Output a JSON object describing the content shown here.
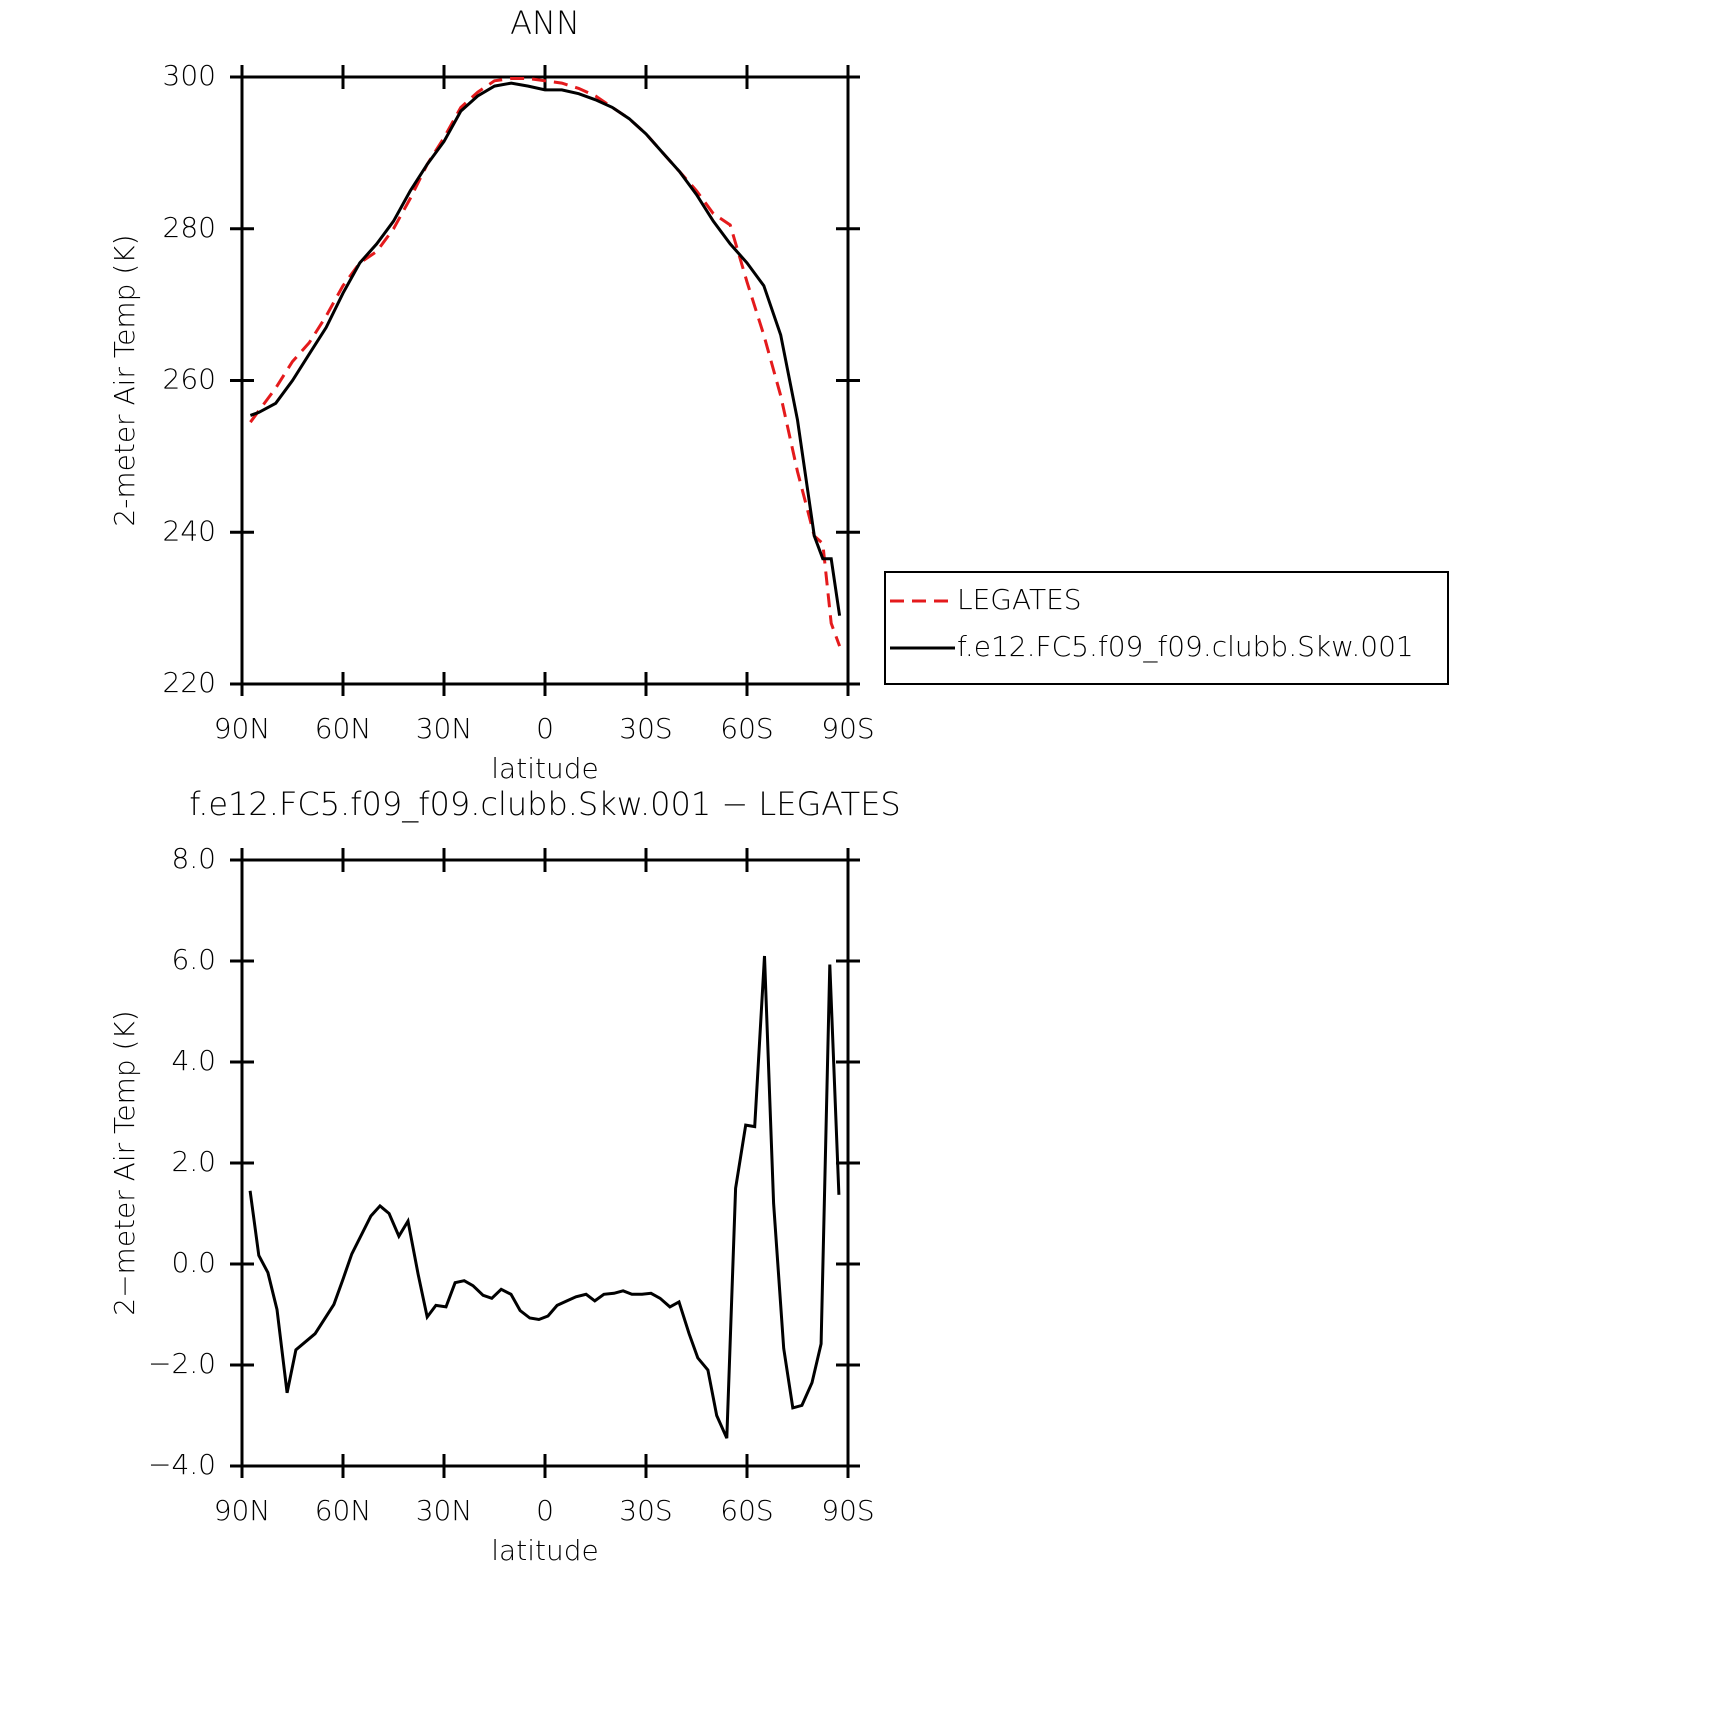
{
  "chart_data": [
    {
      "type": "line",
      "title": "ANN",
      "x_label": "latitude",
      "y_label": "2-meter Air Temp (K)",
      "xlim": [
        90,
        -90
      ],
      "xticks": [
        {
          "value": 90,
          "label": "90N"
        },
        {
          "value": 60,
          "label": "60N"
        },
        {
          "value": 30,
          "label": "30N"
        },
        0,
        {
          "value": -30,
          "label": "30S"
        },
        {
          "value": -60,
          "label": "60S"
        },
        {
          "value": -90,
          "label": "90S"
        }
      ],
      "ylim": [
        220,
        300
      ],
      "yticks": [
        220,
        240,
        260,
        280,
        300
      ],
      "legend": "right",
      "x": [
        87.5,
        85,
        80,
        75,
        70,
        65,
        60,
        55,
        50,
        45,
        40,
        35,
        30,
        25,
        20,
        15,
        10,
        5,
        0,
        -5,
        -10,
        -15,
        -20,
        -25,
        -30,
        -35,
        -40,
        -45,
        -50,
        -55,
        -60,
        -65,
        -70,
        -75,
        -80,
        -82.5,
        -85,
        -87.5
      ],
      "series": [
        {
          "name": "LEGATES",
          "color": "#e41a1c",
          "style": "dashed",
          "values": [
            254.5,
            256,
            259,
            262.5,
            265,
            268.5,
            272.5,
            275.5,
            277,
            280,
            284,
            288.5,
            292,
            296,
            298,
            299.5,
            299.8,
            299.8,
            299.5,
            299.2,
            298.5,
            297.5,
            296,
            294.5,
            292.5,
            290,
            287.5,
            285,
            282,
            280.5,
            273,
            266,
            258,
            248,
            239.5,
            238.5,
            228,
            225
          ]
        },
        {
          "name": "f.e12.FC5.f09_f09.clubb.Skw.001",
          "color": "#000000",
          "style": "solid",
          "values": [
            255.4,
            255.8,
            257,
            260,
            263.5,
            267,
            271.5,
            275.5,
            278,
            281,
            285,
            288.5,
            291.5,
            295.5,
            297.5,
            298.8,
            299.2,
            298.8,
            298.3,
            298.3,
            297.8,
            297,
            296,
            294.5,
            292.5,
            290,
            287.5,
            284.5,
            281,
            278,
            275.5,
            272.5,
            266,
            254.8,
            239.5,
            236.5,
            236.5,
            229
          ]
        }
      ]
    },
    {
      "type": "line",
      "title": "f.e12.FC5.f09_f09.clubb.Skw.001 − LEGATES",
      "x_label": "latitude",
      "y_label": "2−meter Air Temp (K)",
      "xlim": [
        90,
        -90
      ],
      "xticks": [
        {
          "value": 90,
          "label": "90N"
        },
        {
          "value": 60,
          "label": "60N"
        },
        {
          "value": 30,
          "label": "30N"
        },
        0,
        {
          "value": -30,
          "label": "30S"
        },
        {
          "value": -60,
          "label": "60S"
        },
        {
          "value": -90,
          "label": "90S"
        }
      ],
      "ylim": [
        -4,
        8
      ],
      "yticks": [
        {
          "value": -4,
          "label": "−4.0"
        },
        {
          "value": -2,
          "label": "−2.0"
        },
        {
          "value": 0,
          "label": "0.0"
        },
        {
          "value": 2,
          "label": "2.0"
        },
        {
          "value": 4,
          "label": "4.0"
        },
        {
          "value": 6,
          "label": "6.0"
        },
        {
          "value": 8,
          "label": "8.0"
        }
      ],
      "x": [
        87.6,
        85,
        82.3,
        79.6,
        76.6,
        74,
        68.3,
        62.7,
        60,
        57.4,
        51.7,
        49,
        46.3,
        43.4,
        40.7,
        37.7,
        35,
        32.4,
        29.4,
        26.7,
        24,
        21.4,
        18.4,
        15.8,
        13,
        10.1,
        7.4,
        4.5,
        1.8,
        -0.9,
        -3.6,
        -6.5,
        -9.2,
        -12.2,
        -14.8,
        -17.5,
        -20.5,
        -23.2,
        -25.8,
        -28.8,
        -31.5,
        -34.2,
        -37.1,
        -39.8,
        -42.8,
        -45.4,
        -48.4,
        -51,
        -54,
        -56.6,
        -59.6,
        -62.3,
        -65.2,
        -67.9,
        -70.9,
        -73.6,
        -76.3,
        -79.3,
        -82,
        -84.6,
        -87.3
      ],
      "series": [
        {
          "color": "#000000",
          "style": "solid",
          "values": [
            1.45,
            0.17,
            -0.17,
            -0.9,
            -2.55,
            -1.7,
            -1.38,
            -0.8,
            -0.3,
            0.2,
            0.95,
            1.15,
            1.0,
            0.55,
            0.85,
            -0.2,
            -1.05,
            -0.82,
            -0.85,
            -0.37,
            -0.33,
            -0.43,
            -0.62,
            -0.68,
            -0.5,
            -0.6,
            -0.92,
            -1.07,
            -1.1,
            -1.03,
            -0.82,
            -0.73,
            -0.65,
            -0.6,
            -0.73,
            -0.6,
            -0.58,
            -0.53,
            -0.6,
            -0.6,
            -0.58,
            -0.68,
            -0.85,
            -0.75,
            -1.38,
            -1.86,
            -2.1,
            -3.0,
            -3.45,
            1.5,
            2.75,
            2.72,
            6.1,
            1.2,
            -1.67,
            -2.85,
            -2.8,
            -2.35,
            -1.58,
            5.93,
            1.37
          ]
        }
      ]
    }
  ]
}
